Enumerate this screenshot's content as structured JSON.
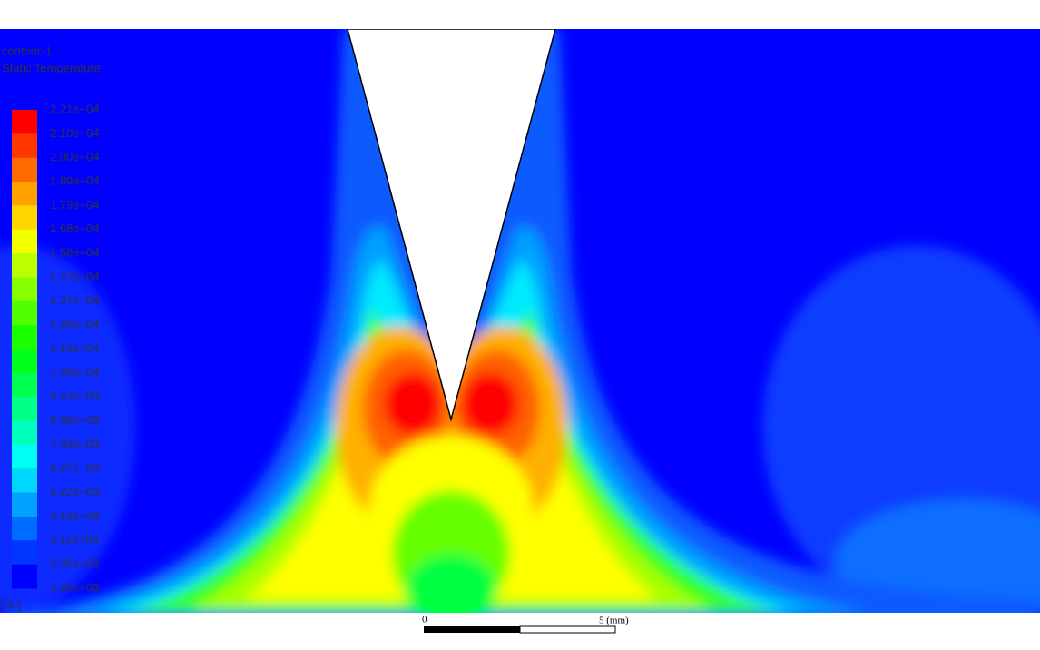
{
  "legend": {
    "title": "contour-1",
    "subtitle": "Static Temperature",
    "unit": "[ k ]",
    "levels": [
      "2.21e+04",
      "2.10e+04",
      "2.00e+04",
      "1.89e+04",
      "1.79e+04",
      "1.68e+04",
      "1.58e+04",
      "1.47e+04",
      "1.37e+04",
      "1.26e+04",
      "1.15e+04",
      "1.05e+04",
      "9.43e+03",
      "8.38e+03",
      "7.33e+03",
      "6.27e+03",
      "5.22e+03",
      "4.16e+03",
      "3.11e+03",
      "2.05e+03",
      "1.00e+03"
    ]
  },
  "scale_bar": {
    "start": "0",
    "end": "5 (mm)"
  }
}
